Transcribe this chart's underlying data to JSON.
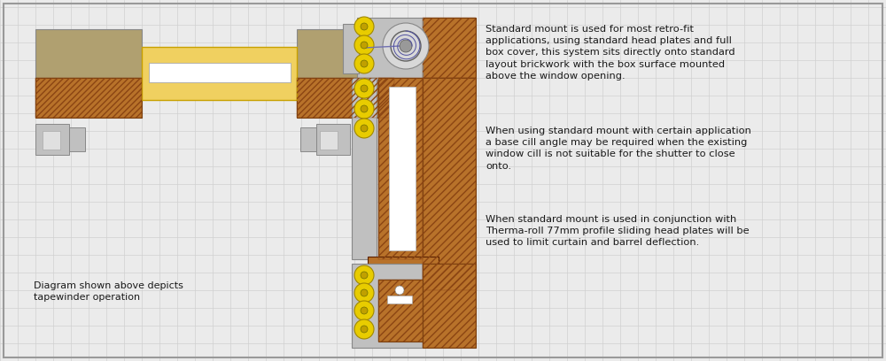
{
  "bg_color": "#ebebeb",
  "grid_color": "#d0d0d0",
  "text1": "Standard mount is used for most retro-fit\napplications, using standard head plates and full\nbox cover, this system sits directly onto standard\nlayout brickwork with the box surface mounted\nabove the window opening.",
  "text2": "When using standard mount with certain application\na base cill angle may be required when the existing\nwindow cill is not suitable for the shutter to close\nonto.",
  "text3": "When standard mount is used in conjunction with\nTherma-roll 77mm profile sliding head plates will be\nused to limit curtain and barrel deflection.",
  "caption": "Diagram shown above depicts\ntapewinder operation",
  "brick_brown": "#b8722a",
  "brick_hatch": "#8B4513",
  "stone_tan": "#b0a070",
  "gray_light": "#c0c0c0",
  "gray_mid": "#a0a0a0",
  "yellow": "#e8cc00",
  "yellow_dark": "#a08800",
  "white": "#ffffff",
  "gold_light": "#f0d060",
  "gold_edge": "#c8a000",
  "outer_border": "#999999",
  "text_color": "#1a1a1a"
}
